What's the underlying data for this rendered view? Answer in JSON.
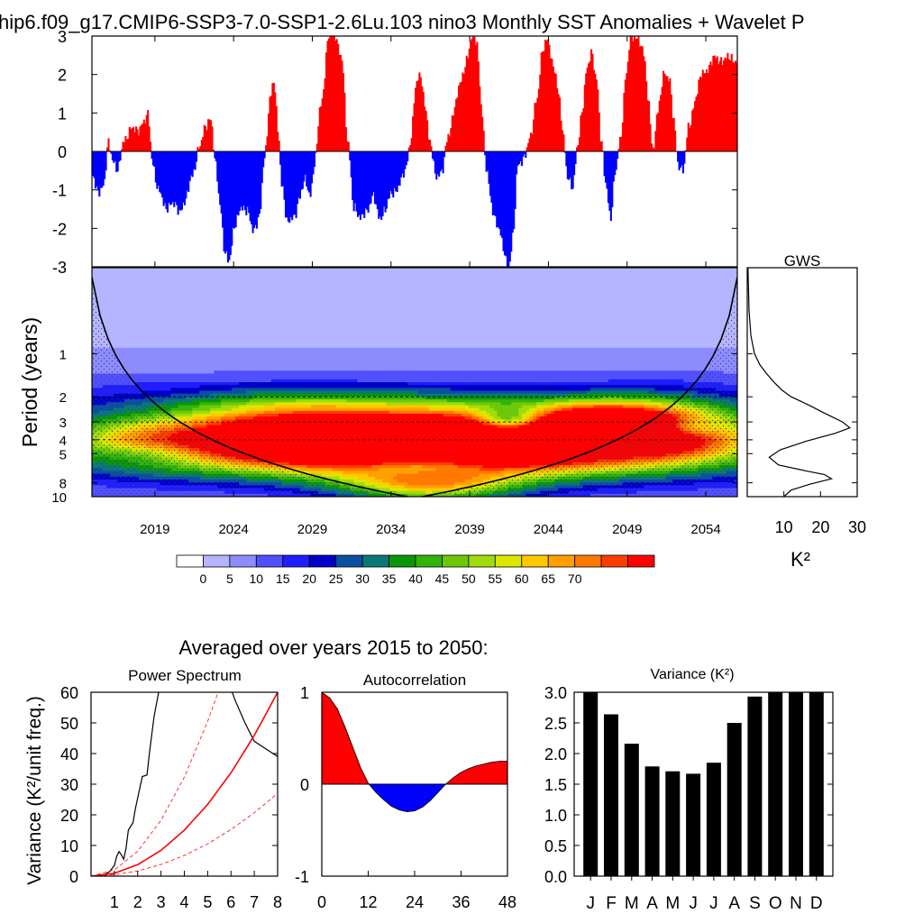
{
  "title": "hip6.f09_g17.CMIP6-SSP3-7.0-SSP1-2.6Lu.103 nino3 Monthly SST Anomalies + Wavelet P",
  "averaged_title": "Averaged over years 2015 to 2050:",
  "colors": {
    "positive": "#ff0000",
    "negative": "#0000ff",
    "contour_scale": [
      "#ffffff",
      "#b4b4ff",
      "#8c8cff",
      "#5050ff",
      "#1e1eff",
      "#0000c8",
      "#0a50a0",
      "#0a7878",
      "#0a960a",
      "#32b40a",
      "#6ec80a",
      "#a0dc0a",
      "#dce600",
      "#ffc800",
      "#ffa000",
      "#ff7800",
      "#ff3c00",
      "#ff0000"
    ]
  },
  "chart_data": [
    {
      "id": "timeseries",
      "type": "area",
      "ylim": [
        -3,
        3
      ],
      "yticks": [
        "3",
        "2",
        "1",
        "0",
        "-1",
        "-2",
        "-3"
      ],
      "xlim": [
        2015,
        2056
      ],
      "keypoints": [
        [
          2015.0,
          -0.7
        ],
        [
          2015.3,
          -1.0
        ],
        [
          2015.7,
          -0.9
        ],
        [
          2016.0,
          0.2
        ],
        [
          2016.3,
          -0.2
        ],
        [
          2016.6,
          -0.5
        ],
        [
          2017.0,
          0.3
        ],
        [
          2017.4,
          0.6
        ],
        [
          2017.8,
          0.5
        ],
        [
          2018.2,
          0.8
        ],
        [
          2018.5,
          0.9
        ],
        [
          2018.8,
          -0.3
        ],
        [
          2019.2,
          -1.0
        ],
        [
          2019.6,
          -1.5
        ],
        [
          2020.0,
          -1.3
        ],
        [
          2020.5,
          -1.6
        ],
        [
          2020.9,
          -1.2
        ],
        [
          2021.3,
          -0.7
        ],
        [
          2021.8,
          0.2
        ],
        [
          2022.2,
          0.6
        ],
        [
          2022.5,
          0.9
        ],
        [
          2022.8,
          -0.3
        ],
        [
          2023.1,
          -1.5
        ],
        [
          2023.4,
          -2.6
        ],
        [
          2023.7,
          -2.8
        ],
        [
          2024.0,
          -2.0
        ],
        [
          2024.4,
          -1.4
        ],
        [
          2024.8,
          -1.6
        ],
        [
          2025.2,
          -2.0
        ],
        [
          2025.6,
          -1.7
        ],
        [
          2025.9,
          -0.2
        ],
        [
          2026.3,
          1.5
        ],
        [
          2026.5,
          1.8
        ],
        [
          2026.8,
          0.4
        ],
        [
          2027.0,
          -0.8
        ],
        [
          2027.4,
          -1.9
        ],
        [
          2027.8,
          -1.7
        ],
        [
          2028.1,
          -1.2
        ],
        [
          2028.5,
          -0.8
        ],
        [
          2028.8,
          -1.1
        ],
        [
          2029.1,
          -0.3
        ],
        [
          2029.5,
          1.2
        ],
        [
          2030.0,
          3.0
        ],
        [
          2030.4,
          3.0
        ],
        [
          2030.8,
          2.5
        ],
        [
          2031.2,
          0.2
        ],
        [
          2031.6,
          -1.4
        ],
        [
          2032.0,
          -1.8
        ],
        [
          2032.4,
          -1.5
        ],
        [
          2032.8,
          -1.2
        ],
        [
          2033.2,
          -1.7
        ],
        [
          2033.6,
          -1.5
        ],
        [
          2034.0,
          -1.1
        ],
        [
          2034.4,
          -0.9
        ],
        [
          2034.8,
          -0.6
        ],
        [
          2035.2,
          0.3
        ],
        [
          2035.5,
          1.6
        ],
        [
          2035.8,
          2.0
        ],
        [
          2036.1,
          1.3
        ],
        [
          2036.4,
          0.2
        ],
        [
          2036.8,
          -0.6
        ],
        [
          2037.2,
          -0.5
        ],
        [
          2037.6,
          0.4
        ],
        [
          2038.0,
          1.2
        ],
        [
          2038.4,
          1.8
        ],
        [
          2038.8,
          2.5
        ],
        [
          2039.1,
          3.0
        ],
        [
          2039.4,
          2.8
        ],
        [
          2039.7,
          1.2
        ],
        [
          2040.0,
          -0.5
        ],
        [
          2040.4,
          -1.5
        ],
        [
          2040.8,
          -2.0
        ],
        [
          2041.1,
          -2.6
        ],
        [
          2041.4,
          -3.0
        ],
        [
          2041.7,
          -2.2
        ],
        [
          2042.0,
          -0.4
        ],
        [
          2042.4,
          -0.1
        ],
        [
          2042.8,
          0.3
        ],
        [
          2043.2,
          1.4
        ],
        [
          2043.6,
          2.6
        ],
        [
          2043.9,
          2.9
        ],
        [
          2044.3,
          2.2
        ],
        [
          2044.6,
          1.4
        ],
        [
          2044.9,
          0.4
        ],
        [
          2045.2,
          -0.7
        ],
        [
          2045.5,
          -1.0
        ],
        [
          2045.8,
          0.2
        ],
        [
          2046.1,
          1.1
        ],
        [
          2046.4,
          2.1
        ],
        [
          2046.7,
          2.6
        ],
        [
          2047.0,
          1.9
        ],
        [
          2047.3,
          0.2
        ],
        [
          2047.6,
          -0.8
        ],
        [
          2047.9,
          -1.7
        ],
        [
          2048.2,
          -0.6
        ],
        [
          2048.5,
          0.3
        ],
        [
          2048.9,
          2.0
        ],
        [
          2049.2,
          3.0
        ],
        [
          2049.6,
          3.0
        ],
        [
          2050.0,
          2.5
        ],
        [
          2050.3,
          1.3
        ],
        [
          2050.6,
          0.0
        ],
        [
          2050.9,
          1.0
        ],
        [
          2051.3,
          2.1
        ],
        [
          2051.6,
          1.9
        ],
        [
          2051.9,
          0.8
        ],
        [
          2052.2,
          -0.3
        ],
        [
          2052.5,
          -0.5
        ],
        [
          2052.9,
          0.7
        ],
        [
          2053.3,
          1.4
        ],
        [
          2053.7,
          2.0
        ],
        [
          2054.1,
          2.2
        ],
        [
          2054.5,
          2.4
        ],
        [
          2056.0,
          2.4
        ]
      ]
    },
    {
      "id": "wavelet",
      "type": "heatmap",
      "ylabel": "Period (years)",
      "yticks": [
        "1",
        "2",
        "3",
        "4",
        "5",
        "8",
        "10"
      ],
      "xticks": [
        "2019",
        "2024",
        "2029",
        "2034",
        "2039",
        "2044",
        "2049",
        "2054"
      ],
      "period_range": [
        0.25,
        10
      ],
      "xlim": [
        2015,
        2056
      ],
      "levels": [
        "0",
        "5",
        "10",
        "15",
        "20",
        "25",
        "30",
        "35",
        "40",
        "45",
        "50",
        "55",
        "60",
        "65",
        "70"
      ],
      "blobs": [
        {
          "t": 2031.0,
          "p": 4.3,
          "a": 9.0,
          "b": 0.11,
          "v": 13.0
        },
        {
          "t": 2043.0,
          "p": 4.2,
          "a": 9.0,
          "b": 0.11,
          "v": 12.5
        },
        {
          "t": 2037.0,
          "p": 4.3,
          "a": 14.0,
          "b": 0.13,
          "v": 6.0
        },
        {
          "t": 2047.5,
          "p": 3.1,
          "a": 2.8,
          "b": 0.06,
          "v": 10.5
        },
        {
          "t": 2036.5,
          "p": 8.3,
          "a": 4.0,
          "b": 0.045,
          "v": 8.5
        },
        {
          "t": 2052.0,
          "p": 3.2,
          "a": 3.0,
          "b": 0.11,
          "v": 5.5
        },
        {
          "t": 2027.0,
          "p": 3.0,
          "a": 4.5,
          "b": 0.09,
          "v": 4.0
        },
        {
          "t": 2036.0,
          "p": 2.4,
          "a": 12.0,
          "b": 0.05,
          "v": 2.5
        },
        {
          "t": 2018.0,
          "p": 4.3,
          "a": 3.0,
          "b": 0.07,
          "v": 4.5
        },
        {
          "t": 2034.5,
          "p": 4.0,
          "a": 1.2,
          "b": 0.012,
          "v": -9.0
        },
        {
          "t": 2041.5,
          "p": 3.0,
          "a": 1.6,
          "b": 0.02,
          "v": -9.0
        },
        {
          "t": 2046.8,
          "p": 4.4,
          "a": 2.2,
          "b": 0.015,
          "v": -8.0
        },
        {
          "t": 2036.0,
          "p": 5.9,
          "a": 3.2,
          "b": 0.02,
          "v": -7.0
        },
        {
          "t": 2052.8,
          "p": 3.3,
          "a": 1.5,
          "b": 0.012,
          "v": -5.0
        },
        {
          "t": 2018.5,
          "p": 5.0,
          "a": 2.5,
          "b": 0.02,
          "v": -4.0
        }
      ]
    },
    {
      "id": "gws",
      "type": "line",
      "title": "GWS",
      "xlim": [
        0,
        30
      ],
      "xticks": [
        "10",
        "20",
        "30"
      ],
      "xlabel": "K²",
      "points": [
        [
          0.2,
          0.25
        ],
        [
          0.5,
          0.5
        ],
        [
          1.0,
          0.75
        ],
        [
          2.0,
          1.0
        ],
        [
          3.5,
          1.2
        ],
        [
          5.5,
          1.4
        ],
        [
          7.5,
          1.6
        ],
        [
          9.5,
          1.8
        ],
        [
          12.0,
          2.0
        ],
        [
          17.0,
          2.3
        ],
        [
          21.0,
          2.6
        ],
        [
          26.0,
          3.0
        ],
        [
          28.0,
          3.3
        ],
        [
          24.0,
          3.6
        ],
        [
          16.0,
          4.1
        ],
        [
          9.0,
          4.7
        ],
        [
          6.0,
          5.3
        ],
        [
          8.5,
          6.0
        ],
        [
          16.0,
          6.6
        ],
        [
          21.0,
          7.0
        ],
        [
          23.0,
          7.5
        ],
        [
          17.0,
          8.2
        ],
        [
          12.0,
          9.0
        ],
        [
          10.0,
          10.0
        ]
      ]
    },
    {
      "id": "power_spectrum",
      "type": "line",
      "title": "Power Spectrum",
      "ylabel": "Variance (K²/unit freq.)",
      "xlim": [
        0,
        8
      ],
      "ylim": [
        0,
        60
      ],
      "xticks": [
        "1",
        "2",
        "3",
        "4",
        "5",
        "6",
        "7",
        "8"
      ],
      "yticks": [
        "0",
        "10",
        "20",
        "30",
        "40",
        "50",
        "60"
      ],
      "series": [
        {
          "name": "spectrum",
          "points": [
            [
              0,
              0
            ],
            [
              0.3,
              0.2
            ],
            [
              0.6,
              0.6
            ],
            [
              0.8,
              1.5
            ],
            [
              1.0,
              3.5
            ],
            [
              1.1,
              6.5
            ],
            [
              1.2,
              8.0
            ],
            [
              1.3,
              7.0
            ],
            [
              1.4,
              5.5
            ],
            [
              1.5,
              9.0
            ],
            [
              1.6,
              15.0
            ],
            [
              1.8,
              17.5
            ],
            [
              1.9,
              22.0
            ],
            [
              2.1,
              29.0
            ],
            [
              2.2,
              32.5
            ],
            [
              2.4,
              33.0
            ],
            [
              2.5,
              40.0
            ],
            [
              2.7,
              52.0
            ],
            [
              2.9,
              60.0
            ],
            [
              3.0,
              64.0
            ],
            [
              6.0,
              61.0
            ],
            [
              6.2,
              57.0
            ],
            [
              6.6,
              50.0
            ],
            [
              7.0,
              44.0
            ],
            [
              7.3,
              42.5
            ],
            [
              8.0,
              39.0
            ]
          ]
        },
        {
          "name": "red-noise",
          "points": [
            [
              0,
              0
            ],
            [
              1,
              0.93
            ],
            [
              2,
              3.75
            ],
            [
              3,
              8.4
            ],
            [
              4,
              15.0
            ],
            [
              5,
              23.4
            ],
            [
              6,
              33.75
            ],
            [
              7,
              45.9
            ],
            [
              8,
              60.0
            ]
          ]
        },
        {
          "name": "upper-95",
          "points": [
            [
              0,
              0
            ],
            [
              1,
              2.0
            ],
            [
              2,
              8.1
            ],
            [
              3,
              18.2
            ],
            [
              4,
              32.3
            ],
            [
              5,
              50.5
            ],
            [
              5.5,
              61.1
            ]
          ]
        },
        {
          "name": "lower-5",
          "points": [
            [
              0,
              0
            ],
            [
              1,
              0.42
            ],
            [
              2,
              1.69
            ],
            [
              3,
              3.8
            ],
            [
              4,
              6.75
            ],
            [
              5,
              10.5
            ],
            [
              6,
              15.2
            ],
            [
              7,
              20.7
            ],
            [
              8,
              27.0
            ]
          ]
        }
      ]
    },
    {
      "id": "autocorrelation",
      "type": "area",
      "title": "Autocorrelation",
      "xlim": [
        0,
        48
      ],
      "ylim": [
        -1,
        1
      ],
      "xticks": [
        "0",
        "12",
        "24",
        "36",
        "48"
      ],
      "yticks": [
        "1",
        "0",
        "-1"
      ],
      "points": [
        [
          0,
          1.0
        ],
        [
          2,
          0.94
        ],
        [
          4,
          0.82
        ],
        [
          6,
          0.62
        ],
        [
          8,
          0.4
        ],
        [
          10,
          0.18
        ],
        [
          12,
          0.01
        ],
        [
          14,
          -0.09
        ],
        [
          16,
          -0.17
        ],
        [
          18,
          -0.24
        ],
        [
          20,
          -0.28
        ],
        [
          22,
          -0.3
        ],
        [
          24,
          -0.29
        ],
        [
          26,
          -0.25
        ],
        [
          28,
          -0.18
        ],
        [
          30,
          -0.09
        ],
        [
          32,
          0.0
        ],
        [
          34,
          0.07
        ],
        [
          36,
          0.13
        ],
        [
          38,
          0.17
        ],
        [
          40,
          0.2
        ],
        [
          42,
          0.22
        ],
        [
          44,
          0.24
        ],
        [
          46,
          0.25
        ],
        [
          48,
          0.25
        ]
      ]
    },
    {
      "id": "monthly_variance",
      "type": "bar",
      "title": "Variance (K²)",
      "categories": [
        "J",
        "F",
        "M",
        "A",
        "M",
        "J",
        "J",
        "A",
        "S",
        "O",
        "N",
        "D"
      ],
      "values": [
        3.0,
        2.64,
        2.16,
        1.79,
        1.71,
        1.67,
        1.85,
        2.5,
        2.93,
        3.0,
        3.0,
        3.0
      ],
      "ylim": [
        0,
        3
      ],
      "yticks": [
        "0.0",
        "0.5",
        "1.0",
        "1.5",
        "2.0",
        "2.5",
        "3.0"
      ]
    }
  ]
}
